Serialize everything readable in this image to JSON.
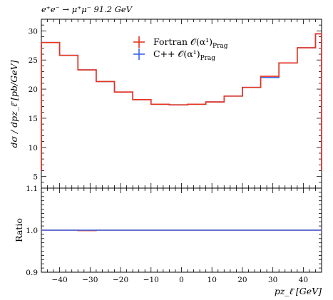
{
  "title": "e⁺e⁻ → μ⁺μ⁻ 91.2 GeV",
  "legend": [
    {
      "label": "Fortran 𝒪(α¹)",
      "subscript": "Prag",
      "color": "#e8331a"
    },
    {
      "label": "C++ 𝒪(α¹)",
      "subscript": "Prag",
      "color": "#3b63e8"
    }
  ],
  "chart_data": [
    {
      "type": "line",
      "step": true,
      "ylabel": "dσ / dpz_ℓ̄ [pb/GeV]",
      "xlim": [
        -46,
        46
      ],
      "ylim": [
        3,
        32
      ],
      "yticks": [
        5,
        10,
        15,
        20,
        25,
        30
      ],
      "bin_edges": [
        -46,
        -40,
        -34,
        -28,
        -22,
        -16,
        -10,
        -4,
        2,
        8,
        14,
        20,
        26,
        32,
        38,
        44,
        46
      ],
      "series": [
        {
          "name": "Fortran 𝒪(α¹)Prag",
          "color": "#e8331a",
          "values": [
            28.0,
            25.8,
            23.3,
            21.3,
            19.5,
            18.2,
            17.4,
            17.3,
            17.4,
            17.8,
            18.8,
            20.3,
            22.2,
            24.5,
            27.1,
            29.5
          ]
        },
        {
          "name": "C++ 𝒪(α¹)Prag",
          "color": "#3b63e8",
          "values": [
            28.0,
            25.8,
            23.3,
            21.3,
            19.5,
            18.2,
            17.4,
            17.3,
            17.4,
            17.8,
            18.8,
            20.3,
            22.0,
            24.5,
            27.1,
            29.5
          ]
        }
      ]
    },
    {
      "type": "line",
      "step": true,
      "xlabel": "pz_ℓ̄ [GeV]",
      "ylabel": "Ratio",
      "xlim": [
        -46,
        46
      ],
      "ylim": [
        0.9,
        1.1
      ],
      "yticks": [
        0.9,
        1.0,
        1.1
      ],
      "ytick_labels": [
        "0.9",
        "1.0",
        "1.1"
      ],
      "xticks": [
        -40,
        -30,
        -20,
        -10,
        0,
        10,
        20,
        30,
        40
      ],
      "xtick_labels": [
        "−40",
        "−30",
        "−20",
        "−10",
        "0",
        "10",
        "20",
        "30",
        "40"
      ],
      "series": [
        {
          "name": "Fortran 𝒪(α¹)Prag",
          "color": "#e8331a",
          "values": [
            1.0,
            1.0,
            0.999,
            1.0,
            1.0,
            1.0,
            1.0,
            1.0,
            1.0,
            1.0,
            1.0,
            1.0,
            1.0,
            1.0,
            1.0,
            1.0
          ]
        },
        {
          "name": "C++ 𝒪(α¹)Prag",
          "color": "#3b63e8",
          "values": [
            1.0,
            1.0,
            1.0,
            1.0,
            1.0,
            1.0,
            1.0,
            1.0,
            1.0,
            1.0,
            1.0,
            1.0,
            1.0,
            1.0,
            1.0,
            1.0
          ]
        }
      ]
    }
  ]
}
